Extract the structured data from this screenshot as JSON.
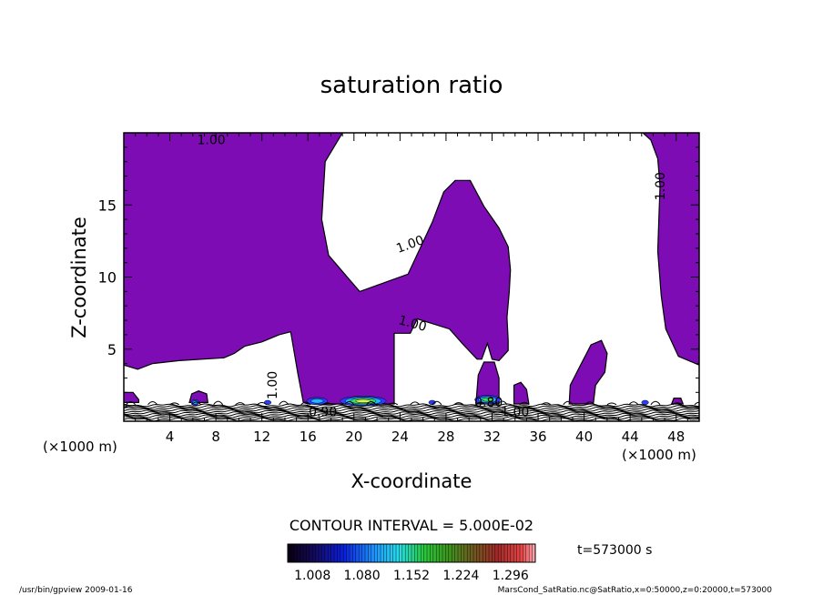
{
  "chart_data": {
    "type": "heatmap",
    "title": "saturation ratio",
    "xlabel": "X-coordinate",
    "ylabel": "Z-coordinate",
    "x_unit": "(×1000 m)",
    "y_unit": "(×1000 m)",
    "xlim": [
      0,
      50
    ],
    "ylim": [
      0,
      20
    ],
    "x_ticks": [
      4,
      8,
      12,
      16,
      20,
      24,
      28,
      32,
      36,
      40,
      44,
      48
    ],
    "y_ticks": [
      5,
      10,
      15
    ],
    "contour_interval_text": "CONTOUR INTERVAL = 5.000E-02",
    "time_text": "t=573000 s",
    "colorbar": {
      "tick_labels": [
        "1.008",
        "1.080",
        "1.152",
        "1.224",
        "1.296"
      ],
      "min": 0.972,
      "max": 1.332
    },
    "fill_color": "#7d0cb4",
    "contour_labels": [
      {
        "text": "1.00",
        "x": 7.6,
        "z": 19.2,
        "angle": 0
      },
      {
        "text": "1.00",
        "x": 25.0,
        "z": 12.0,
        "angle": -20
      },
      {
        "text": "1.00",
        "x": 25.0,
        "z": 6.5,
        "angle": 15
      },
      {
        "text": "1.00",
        "x": 47.0,
        "z": 16.3,
        "angle": -90
      },
      {
        "text": "1.00",
        "x": 13.3,
        "z": 2.5,
        "angle": -90
      },
      {
        "text": "0.90",
        "x": 17.3,
        "z": 0.35,
        "angle": 0
      },
      {
        "text": "0.80",
        "x": 31.7,
        "z": 1.0,
        "angle": 0
      },
      {
        "text": "1.00",
        "x": 34.0,
        "z": 0.35,
        "angle": 0
      }
    ],
    "regions": [
      {
        "name": "upper-left-region",
        "points": [
          [
            0,
            20
          ],
          [
            19,
            20
          ],
          [
            17.5,
            18
          ],
          [
            17.2,
            14
          ],
          [
            17.8,
            11.5
          ],
          [
            20.5,
            9
          ],
          [
            24.7,
            10.2
          ],
          [
            26.8,
            13.8
          ],
          [
            27.8,
            15.9
          ],
          [
            28.8,
            16.7
          ],
          [
            30.1,
            16.7
          ],
          [
            31.3,
            14.9
          ],
          [
            32.6,
            13.4
          ],
          [
            33.4,
            12.1
          ],
          [
            33.6,
            10.5
          ],
          [
            33.5,
            9.0
          ],
          [
            33.3,
            7.2
          ],
          [
            33.4,
            5.6
          ],
          [
            33.4,
            4.9
          ],
          [
            32.6,
            4.2
          ],
          [
            32,
            4.3
          ],
          [
            31.6,
            5.4
          ],
          [
            31.1,
            4.3
          ],
          [
            30.7,
            4.3
          ],
          [
            29.4,
            5.4
          ],
          [
            28.3,
            6.4
          ],
          [
            25.5,
            7.1
          ],
          [
            24.9,
            6.1
          ],
          [
            23.5,
            6.1
          ],
          [
            23.5,
            1.2
          ],
          [
            18.5,
            1.2
          ],
          [
            16,
            1.2
          ],
          [
            15.6,
            1.3
          ],
          [
            15.1,
            3.4
          ],
          [
            14.5,
            6.2
          ],
          [
            13.5,
            6.0
          ],
          [
            12.0,
            5.5
          ],
          [
            10.5,
            5.2
          ],
          [
            9.6,
            4.7
          ],
          [
            8.7,
            4.4
          ],
          [
            4.8,
            4.2
          ],
          [
            2.5,
            4.0
          ],
          [
            1.2,
            3.6
          ],
          [
            0,
            3.9
          ]
        ]
      },
      {
        "name": "right-region",
        "points": [
          [
            45.1,
            20
          ],
          [
            50,
            20
          ],
          [
            50,
            3.9
          ],
          [
            48.2,
            4.5
          ],
          [
            47.1,
            6.4
          ],
          [
            46.7,
            8.7
          ],
          [
            46.4,
            11.8
          ],
          [
            46.5,
            14.2
          ],
          [
            46.6,
            16.3
          ],
          [
            46.4,
            18.2
          ],
          [
            45.8,
            19.5
          ]
        ]
      },
      {
        "name": "bump-x31",
        "points": [
          [
            30.6,
            1.2
          ],
          [
            30.8,
            3.2
          ],
          [
            31.3,
            4.1
          ],
          [
            32.2,
            4.1
          ],
          [
            32.6,
            3.0
          ],
          [
            32.6,
            1.2
          ]
        ]
      },
      {
        "name": "bump-x34",
        "points": [
          [
            33.9,
            1.2
          ],
          [
            33.9,
            2.5
          ],
          [
            34.5,
            2.7
          ],
          [
            35.0,
            2.2
          ],
          [
            35.2,
            1.2
          ]
        ]
      },
      {
        "name": "bump-x40",
        "points": [
          [
            38.7,
            1.2
          ],
          [
            38.8,
            2.5
          ],
          [
            39.5,
            3.6
          ],
          [
            40.6,
            5.3
          ],
          [
            41.5,
            5.6
          ],
          [
            42.0,
            4.7
          ],
          [
            41.8,
            3.4
          ],
          [
            41.0,
            2.5
          ],
          [
            40.8,
            1.2
          ]
        ]
      },
      {
        "name": "bump-x6",
        "points": [
          [
            5.7,
            1.3
          ],
          [
            5.9,
            1.9
          ],
          [
            6.5,
            2.1
          ],
          [
            7.2,
            1.9
          ],
          [
            7.3,
            1.3
          ]
        ]
      },
      {
        "name": "bump-x1",
        "points": [
          [
            0,
            1.3
          ],
          [
            0,
            2.0
          ],
          [
            0.8,
            2.0
          ],
          [
            1.3,
            1.5
          ],
          [
            1.3,
            1.3
          ]
        ]
      },
      {
        "name": "bump-x48",
        "points": [
          [
            47.6,
            1.2
          ],
          [
            47.8,
            1.6
          ],
          [
            48.4,
            1.6
          ],
          [
            48.6,
            1.2
          ]
        ]
      }
    ],
    "hot_spots": [
      {
        "x": 20.8,
        "z": 1.4,
        "rx": 2.0,
        "rz": 0.35,
        "colors": [
          "#2a3cff",
          "#1fb8ff",
          "#42e04a",
          "#e0f060"
        ]
      },
      {
        "x": 16.8,
        "z": 1.4,
        "rx": 0.9,
        "rz": 0.25,
        "colors": [
          "#2a3cff",
          "#1fb8ff"
        ]
      },
      {
        "x": 31.6,
        "z": 1.5,
        "rx": 1.1,
        "rz": 0.3,
        "colors": [
          "#2a3cff",
          "#1fb8ff",
          "#42e04a"
        ]
      },
      {
        "x": 6.2,
        "z": 1.3,
        "rx": 0.35,
        "rz": 0.2,
        "colors": [
          "#2a3cff",
          "#1fb8ff"
        ]
      },
      {
        "x": 12.5,
        "z": 1.3,
        "rx": 0.3,
        "rz": 0.15,
        "colors": [
          "#2a3cff"
        ]
      },
      {
        "x": 26.8,
        "z": 1.3,
        "rx": 0.3,
        "rz": 0.15,
        "colors": [
          "#2a3cff"
        ]
      },
      {
        "x": 45.3,
        "z": 1.3,
        "rx": 0.3,
        "rz": 0.15,
        "colors": [
          "#2a3cff"
        ]
      }
    ]
  },
  "footer": {
    "left": "/usr/bin/gpview   2009-01-16",
    "right": "MarsCond_SatRatio.nc@SatRatio,x=0:50000,z=0:20000,t=573000"
  }
}
